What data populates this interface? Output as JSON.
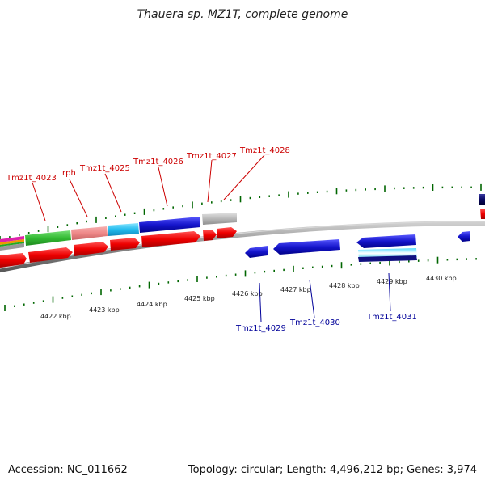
{
  "title": "Thauera sp. MZ1T, complete genome",
  "footer": {
    "accession": "Accession: NC_011662",
    "summary": "Topology: circular; Length: 4,496,212 bp; Genes: 3,974"
  },
  "colors": {
    "forward_label": "#cc0000",
    "reverse_label": "#000099",
    "tick": "#006600",
    "backbone": "#888888",
    "cds": "#ee0000",
    "gene_blue": "#1515cc",
    "gene_green": "#33bb33",
    "gene_salmon": "#ee8888",
    "gene_cyan": "#22bbee",
    "gene_grey": "#b8b8b8",
    "gene_navy": "#0a0a66"
  },
  "scale_labels": [
    "4422 kbp",
    "4423 kbp",
    "4424 kbp",
    "4425 kbp",
    "4426 kbp",
    "4427 kbp",
    "4428 kbp",
    "4429 kbp",
    "4430 kbp"
  ],
  "forward_labels": [
    "Tmz1t_4023",
    "rph",
    "Tmz1t_4025",
    "Tmz1t_4026",
    "Tmz1t_4027",
    "Tmz1t_4028"
  ],
  "reverse_labels": [
    "Tmz1t_4029",
    "Tmz1t_4030",
    "Tmz1t_4031"
  ]
}
